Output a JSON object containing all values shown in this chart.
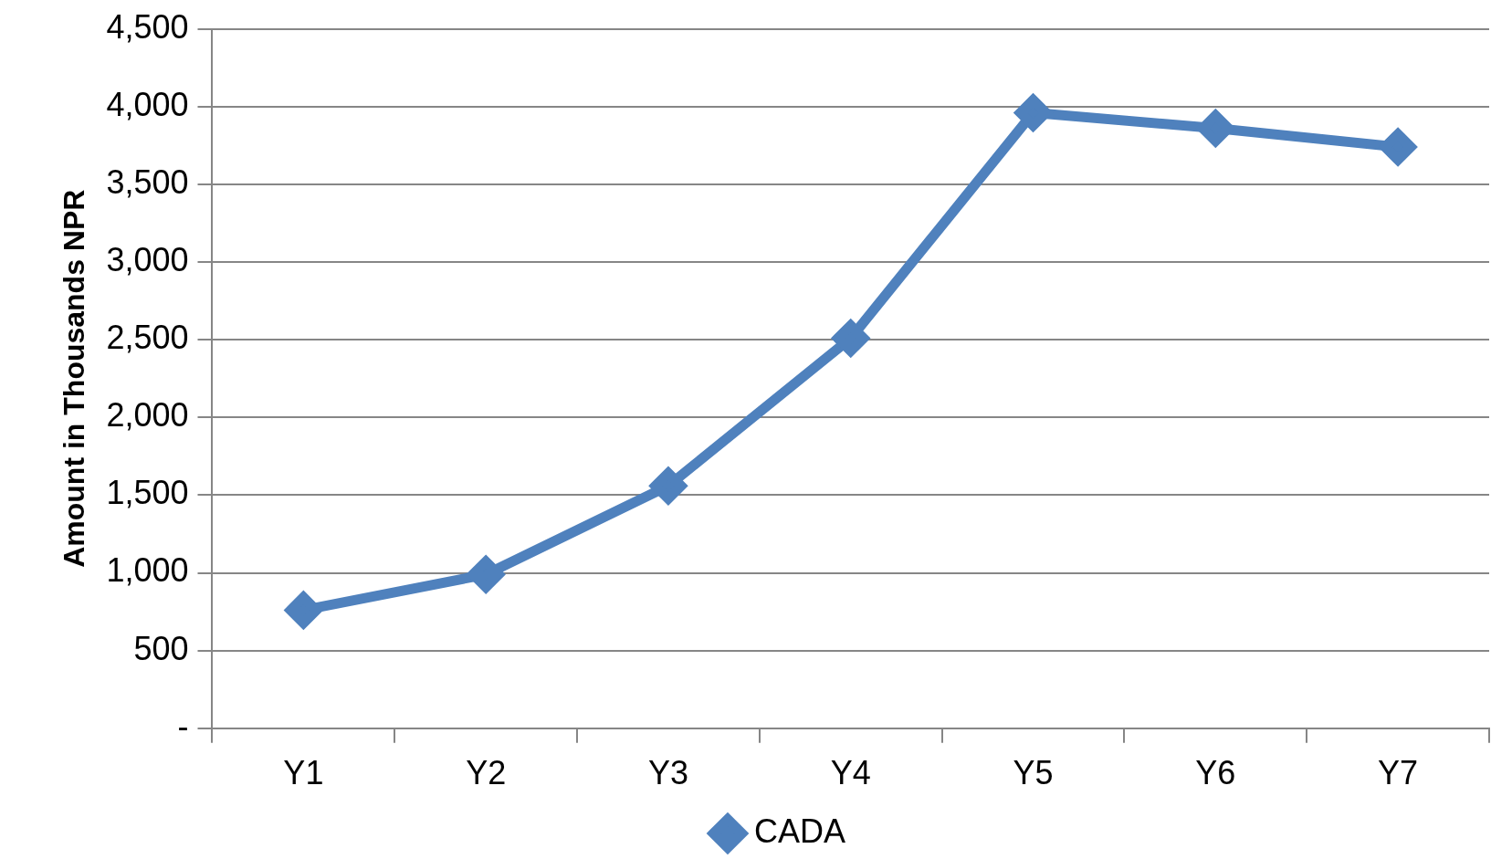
{
  "chart_data": {
    "type": "line",
    "ylabel": "Amount in Thousands NPR",
    "categories": [
      "Y1",
      "Y2",
      "Y3",
      "Y4",
      "Y5",
      "Y6",
      "Y7"
    ],
    "series": [
      {
        "name": "CADA",
        "color": "#4f81bd",
        "values": [
          760,
          990,
          1560,
          2510,
          3960,
          3860,
          3740
        ]
      }
    ],
    "ylim": [
      0,
      4500
    ],
    "yticks": [
      {
        "value": 0,
        "label": "-"
      },
      {
        "value": 500,
        "label": "500"
      },
      {
        "value": 1000,
        "label": "1,000"
      },
      {
        "value": 1500,
        "label": "1,500"
      },
      {
        "value": 2000,
        "label": "2,000"
      },
      {
        "value": 2500,
        "label": "2,500"
      },
      {
        "value": 3000,
        "label": "3,000"
      },
      {
        "value": 3500,
        "label": "3,500"
      },
      {
        "value": 4000,
        "label": "4,000"
      },
      {
        "value": 4500,
        "label": "4,500"
      }
    ],
    "grid": "y",
    "legend": "bottom",
    "marker": "diamond",
    "line_style": "solid"
  }
}
